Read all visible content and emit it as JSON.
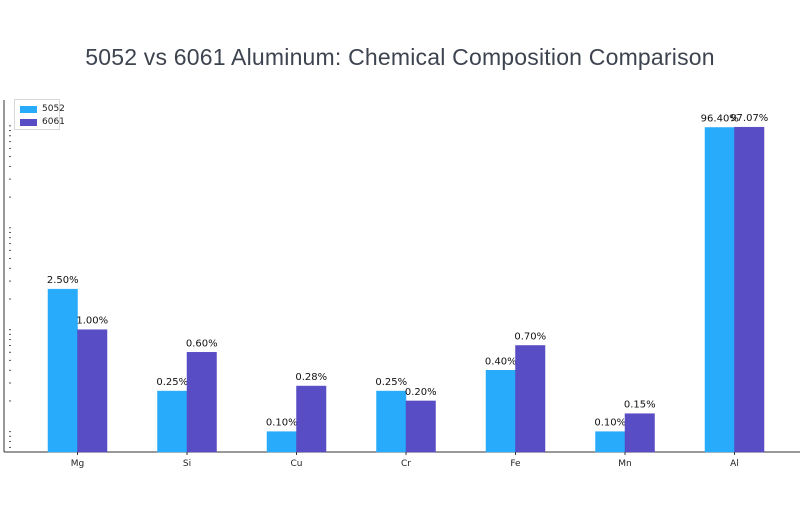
{
  "chart_data": {
    "type": "bar",
    "title": "5052 vs 6061 Aluminum: Chemical Composition Comparison",
    "xlabel": "",
    "ylabel": "",
    "y_scale": "log",
    "categories": [
      "Mg",
      "Si",
      "Cu",
      "Cr",
      "Fe",
      "Mn",
      "Al"
    ],
    "series": [
      {
        "name": "5052",
        "color": "#29abfb",
        "values": [
          2.5,
          0.25,
          0.1,
          0.25,
          0.4,
          0.1,
          96.4
        ],
        "labels": [
          "2.50%",
          "0.25%",
          "0.10%",
          "0.25%",
          "0.40%",
          "0.10%",
          "96.40%"
        ]
      },
      {
        "name": "6061",
        "color": "#584dc5",
        "values": [
          1.0,
          0.6,
          0.28,
          0.2,
          0.7,
          0.15,
          97.07
        ],
        "labels": [
          "1.00%",
          "0.60%",
          "0.28%",
          "0.20%",
          "0.70%",
          "0.15%",
          "97.07%"
        ]
      }
    ],
    "legend_position": "top-left",
    "grid": false
  }
}
